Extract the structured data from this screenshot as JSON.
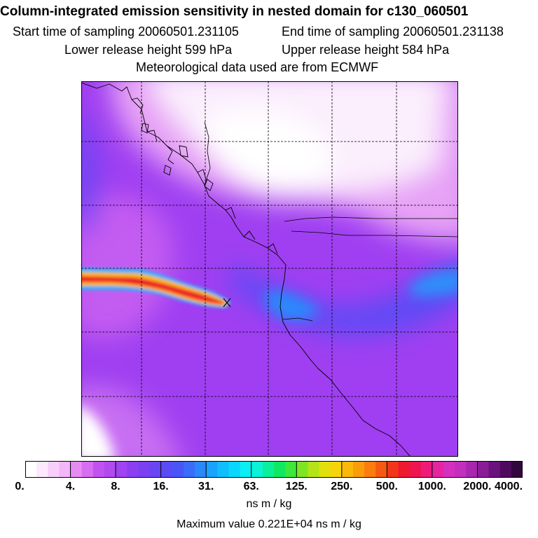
{
  "header": {
    "title": "Column-integrated emission sensitivity in nested domain for c130_060501",
    "start": "Start time of sampling 20060501.231105",
    "end": "End time of sampling 20060501.231138",
    "lower": "Lower release height  599 hPa",
    "upper": "Upper release height  584 hPa",
    "met": "Meteorological data used are from ECMWF"
  },
  "colorbar": {
    "labels": [
      "0.",
      "4.",
      "8.",
      "16.",
      "31.",
      "63.",
      "125.",
      "250.",
      "500.",
      "1000.",
      "2000.",
      "4000."
    ],
    "colors": [
      "#ffffff",
      "#fde8fd",
      "#f8cffb",
      "#f3b6f8",
      "#e68bf2",
      "#d76df1",
      "#c252f0",
      "#b14bf0",
      "#a043f0",
      "#8b3ff1",
      "#7a40f2",
      "#6a45f3",
      "#5a4cf5",
      "#4a55f7",
      "#3a6cf9",
      "#2b88fb",
      "#1aa3fc",
      "#0fbffd",
      "#0ad7fd",
      "#0aeef5",
      "#0af2d8",
      "#0aef9a",
      "#10e860",
      "#3de83b",
      "#7ee524",
      "#b5e316",
      "#e1e00d",
      "#f5d50a",
      "#fab90a",
      "#fb9c0a",
      "#fa7d0d",
      "#f65a12",
      "#f2361a",
      "#ef1a2c",
      "#ee1550",
      "#ed1c7a",
      "#e724a0",
      "#d62fbe",
      "#c22fbd",
      "#a826b0",
      "#8a1c98",
      "#6b127c",
      "#4e0b5e",
      "#33063e"
    ],
    "units": "ns m / kg"
  },
  "footer": {
    "max_value": "Maximum value  0.221E+04 ns m / kg"
  },
  "colors": {
    "background": "#ffffff",
    "grid": "#000000",
    "plume_core": "#ef1a2c",
    "plume_edge": "#fbb80a"
  }
}
